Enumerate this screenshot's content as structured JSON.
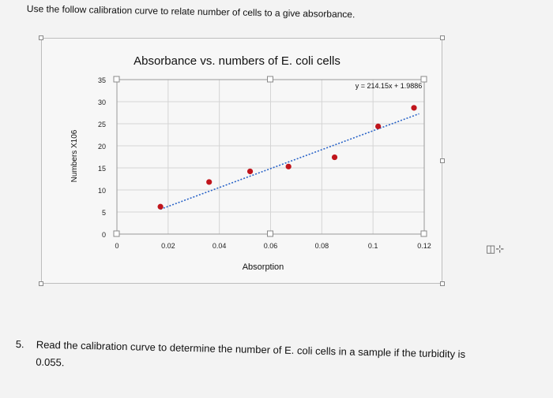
{
  "intro_text": "Use the follow calibration curve to relate number of cells to a give absorbance.",
  "question": {
    "number": "5.",
    "text_line1": "Read the calibration curve to determine the number of E. coli cells in a sample if the turbidity is",
    "text_line2": "0.055."
  },
  "side_icon": "text-cursor-icon",
  "colors": {
    "points": "#c0151c",
    "trendline": "#2a64c8",
    "grid": "#d4d4d4",
    "frame": "#bdbdbd"
  },
  "chart_data": {
    "type": "scatter",
    "title": "Absorbance vs. numbers of E. coli cells",
    "xlabel": "Absorption",
    "ylabel": "Numbers X106",
    "xlim": [
      0,
      0.12
    ],
    "ylim": [
      0,
      35
    ],
    "x_ticks": [
      "0",
      "0.02",
      "0.04",
      "0.06",
      "0.08",
      "0.1",
      "0.12"
    ],
    "y_ticks": [
      "0",
      "5",
      "10",
      "15",
      "20",
      "25",
      "30",
      "35"
    ],
    "grid": true,
    "series": [
      {
        "points": [
          {
            "x": 0.017,
            "y": 6.2
          },
          {
            "x": 0.036,
            "y": 11.8
          },
          {
            "x": 0.052,
            "y": 14.2
          },
          {
            "x": 0.067,
            "y": 15.3
          },
          {
            "x": 0.085,
            "y": 17.4
          },
          {
            "x": 0.102,
            "y": 24.4
          },
          {
            "x": 0.116,
            "y": 28.6
          }
        ]
      }
    ],
    "trendline": {
      "slope": 214.15,
      "intercept": 1.9886,
      "x_range": [
        0.017,
        0.118
      ]
    },
    "equation": "y = 214.15x + 1.9886"
  }
}
